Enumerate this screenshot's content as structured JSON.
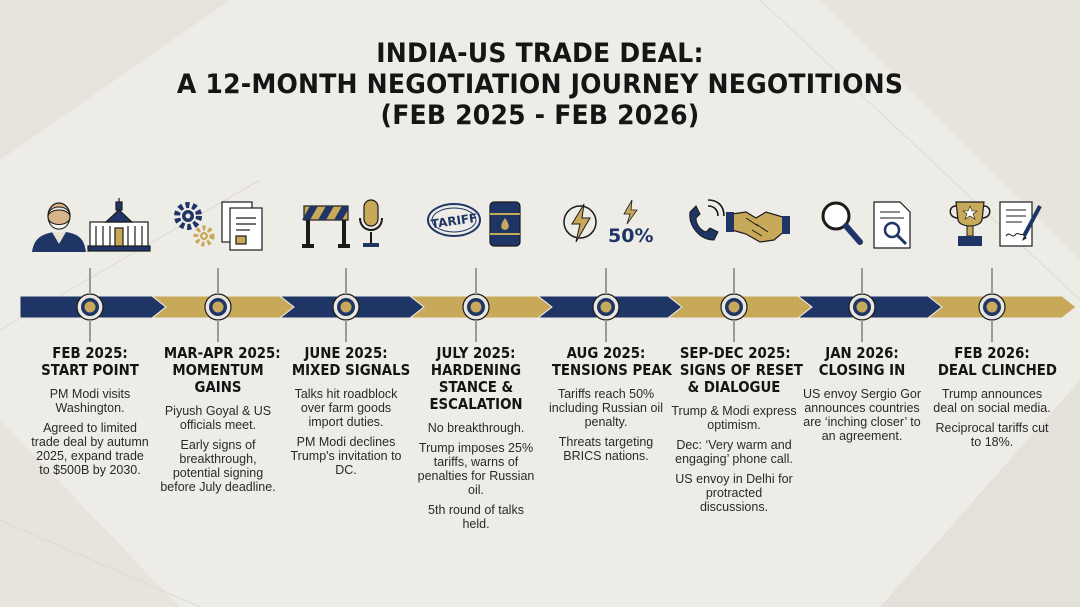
{
  "title": {
    "line1": "INDIA-US TRADE DEAL:",
    "line2": "A 12-MONTH NEGOTIATION JOURNEY NEGOTITIONS",
    "line3": "(FEB 2025 - FEB 2026)"
  },
  "colors": {
    "navy": "#1f3566",
    "gold": "#c8a95a",
    "text": "#1b1b1b"
  },
  "icons": {
    "tariff_label": "TARIFF",
    "percent_label": "50%"
  },
  "milestones": [
    {
      "heading_1": "FEB 2025:",
      "heading_2": "START POINT",
      "heading_3": "",
      "icons": [
        "modi-portrait-icon",
        "white-house-icon"
      ],
      "lines": [
        "PM Modi visits Washington.",
        "Agreed to limited trade deal by autumn 2025, expand trade to $500B by 2030."
      ]
    },
    {
      "heading_1": "MAR-APR 2025:",
      "heading_2": "MOMENTUM",
      "heading_3": "GAINS",
      "icons": [
        "gears-icon",
        "documents-icon"
      ],
      "lines": [
        "Piyush Goyal & US officials meet.",
        "Early signs of breakthrough, potential signing before July deadline."
      ]
    },
    {
      "heading_1": "JUNE 2025:",
      "heading_2": "MIXED SIGNALS",
      "heading_3": "",
      "icons": [
        "roadblock-icon",
        "microphone-icon"
      ],
      "lines": [
        "Talks hit roadblock over farm goods import duties.",
        "PM Modi declines Trump's invitation to DC."
      ]
    },
    {
      "heading_1": "JULY 2025:",
      "heading_2": "HARDENING",
      "heading_3": "STANCE &",
      "heading_4": "ESCALATION",
      "icons": [
        "tariff-stamp-icon",
        "oil-barrel-icon"
      ],
      "lines": [
        "No breakthrough.",
        "Trump imposes 25% tariffs, warns of penalties for Russian oil.",
        "5th round of talks held."
      ]
    },
    {
      "heading_1": "AUG 2025:",
      "heading_2": "TENSIONS PEAK",
      "heading_3": "",
      "icons": [
        "lightning-icon",
        "lightning-small-icon"
      ],
      "lines": [
        "Tariffs reach 50% including Russian oil penalty.",
        "Threats targeting BRICS nations."
      ]
    },
    {
      "heading_1": "SEP-DEC 2025:",
      "heading_2": "SIGNS OF RESET",
      "heading_3": "& DIALOGUE",
      "icons": [
        "phone-icon",
        "handshake-icon"
      ],
      "lines": [
        "Trump & Modi express optimism.",
        "Dec: ‘Very warm and engaging’ phone call.",
        "US envoy in Delhi for protracted discussions."
      ]
    },
    {
      "heading_1": "JAN 2026:",
      "heading_2": "CLOSING IN",
      "heading_3": "",
      "icons": [
        "magnifier-icon",
        "document-search-icon"
      ],
      "lines": [
        "US envoy Sergio Gor announces countries are ‘inching closer’ to an agreement."
      ]
    },
    {
      "heading_1": "FEB 2026:",
      "heading_2": "DEAL CLINCHED",
      "heading_3": "",
      "icons": [
        "trophy-icon",
        "signed-document-icon"
      ],
      "lines": [
        "Trump announces deal on social media.",
        "Reciprocal tariffs cut to 18%."
      ]
    }
  ]
}
